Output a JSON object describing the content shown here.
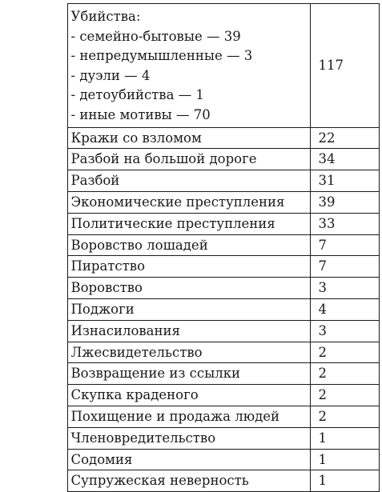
{
  "table": {
    "first_row": {
      "heading": "Убийства:",
      "items": [
        "- семейно-бытовые — 39",
        "- непредумышленные — 3",
        "- дуэли — 4",
        "- детоубийства — 1",
        "- иные мотивы — 70"
      ],
      "value": "117"
    },
    "rows": [
      {
        "name": "Кражи со взломом",
        "value": "22"
      },
      {
        "name": "Разбой на большой дороге",
        "value": "34"
      },
      {
        "name": "Разбой",
        "value": "31"
      },
      {
        "name": "Экономические преступления",
        "value": "39"
      },
      {
        "name": "Политические преступления",
        "value": "33"
      },
      {
        "name": "Воровство лошадей",
        "value": "7"
      },
      {
        "name": "Пиратство",
        "value": "7"
      },
      {
        "name": "Воровство",
        "value": "3"
      },
      {
        "name": "Поджоги",
        "value": "4"
      },
      {
        "name": "Изнасилования",
        "value": "3"
      },
      {
        "name": "Лжесвидетельство",
        "value": "2"
      },
      {
        "name": "Возвращение из ссылки",
        "value": "2"
      },
      {
        "name": "Скупка краденого",
        "value": "2"
      },
      {
        "name": "Похищение и продажа людей",
        "value": "2"
      },
      {
        "name": "Членовредительство",
        "value": "1"
      },
      {
        "name": "Содомия",
        "value": "1"
      },
      {
        "name": "Супружеская неверность",
        "value": "1"
      }
    ]
  }
}
